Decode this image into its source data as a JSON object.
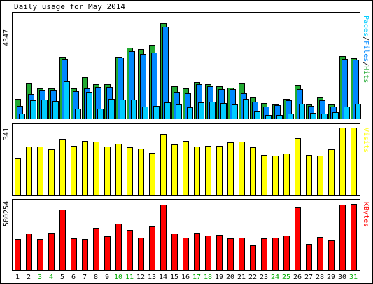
{
  "title": "Daily usage for May 2014",
  "colors": {
    "hits": "#22aa33",
    "files": "#0088ff",
    "pages": "#00ccff",
    "visits": "#ffff00",
    "kbytes": "#ff0000",
    "weekend_label": "#00aa00"
  },
  "labels": {
    "top_max": "4347",
    "visits_max": "341",
    "kbytes_max": "580254",
    "pages": "Pages",
    "files": "Files",
    "hits": "Hits",
    "visits": "Visits",
    "kbytes": "KBytes",
    "separator": "/"
  },
  "chart_data": [
    {
      "type": "bar",
      "categories": [
        "1",
        "2",
        "3",
        "4",
        "5",
        "6",
        "7",
        "8",
        "9",
        "10",
        "11",
        "12",
        "13",
        "14",
        "15",
        "16",
        "17",
        "18",
        "19",
        "20",
        "21",
        "22",
        "23",
        "24",
        "25",
        "26",
        "27",
        "28",
        "29",
        "30",
        "31"
      ],
      "weekend_days": [
        "3",
        "4",
        "10",
        "11",
        "17",
        "18",
        "24",
        "25",
        "31"
      ],
      "ylim": [
        0,
        4347
      ],
      "series": [
        {
          "name": "Hits",
          "values": [
            840,
            1490,
            1280,
            1280,
            2620,
            1280,
            1770,
            1470,
            1450,
            2630,
            3020,
            2960,
            3140,
            4060,
            1360,
            1270,
            1550,
            1470,
            1360,
            1310,
            1490,
            890,
            660,
            600,
            840,
            1420,
            600,
            900,
            600,
            2640,
            2570
          ]
        },
        {
          "name": "Files",
          "values": [
            540,
            1040,
            1180,
            1190,
            2520,
            1170,
            1270,
            1350,
            1350,
            2600,
            2850,
            2730,
            2790,
            3900,
            1140,
            1080,
            1470,
            1370,
            1240,
            1250,
            1080,
            720,
            520,
            560,
            770,
            1260,
            540,
            770,
            500,
            2520,
            2490
          ]
        },
        {
          "name": "Pages",
          "values": [
            200,
            780,
            790,
            740,
            1570,
            410,
            1130,
            420,
            820,
            810,
            810,
            510,
            540,
            670,
            610,
            490,
            670,
            710,
            650,
            610,
            840,
            310,
            160,
            150,
            200,
            640,
            230,
            220,
            280,
            510,
            630
          ]
        }
      ]
    },
    {
      "type": "bar",
      "categories": [
        "1",
        "2",
        "3",
        "4",
        "5",
        "6",
        "7",
        "8",
        "9",
        "10",
        "11",
        "12",
        "13",
        "14",
        "15",
        "16",
        "17",
        "18",
        "19",
        "20",
        "21",
        "22",
        "23",
        "24",
        "25",
        "26",
        "27",
        "28",
        "29",
        "30",
        "31"
      ],
      "ylim": [
        0,
        341
      ],
      "series": [
        {
          "name": "Visits",
          "values": [
            186,
            245,
            245,
            230,
            283,
            250,
            272,
            271,
            244,
            261,
            243,
            233,
            213,
            310,
            256,
            273,
            244,
            248,
            247,
            265,
            271,
            240,
            201,
            200,
            210,
            286,
            203,
            198,
            230,
            340,
            341
          ]
        }
      ]
    },
    {
      "type": "bar",
      "categories": [
        "1",
        "2",
        "3",
        "4",
        "5",
        "6",
        "7",
        "8",
        "9",
        "10",
        "11",
        "12",
        "13",
        "14",
        "15",
        "16",
        "17",
        "18",
        "19",
        "20",
        "21",
        "22",
        "23",
        "24",
        "25",
        "26",
        "27",
        "28",
        "29",
        "30",
        "31"
      ],
      "ylim": [
        0,
        580254
      ],
      "series": [
        {
          "name": "KBytes",
          "values": [
            266000,
            318000,
            270000,
            324000,
            523000,
            276000,
            270000,
            364000,
            292000,
            401000,
            348000,
            278000,
            380000,
            568000,
            318000,
            279000,
            326000,
            300000,
            304000,
            273000,
            284000,
            212000,
            277000,
            282000,
            302000,
            551000,
            226000,
            286000,
            263000,
            570000,
            574000
          ]
        }
      ]
    }
  ]
}
